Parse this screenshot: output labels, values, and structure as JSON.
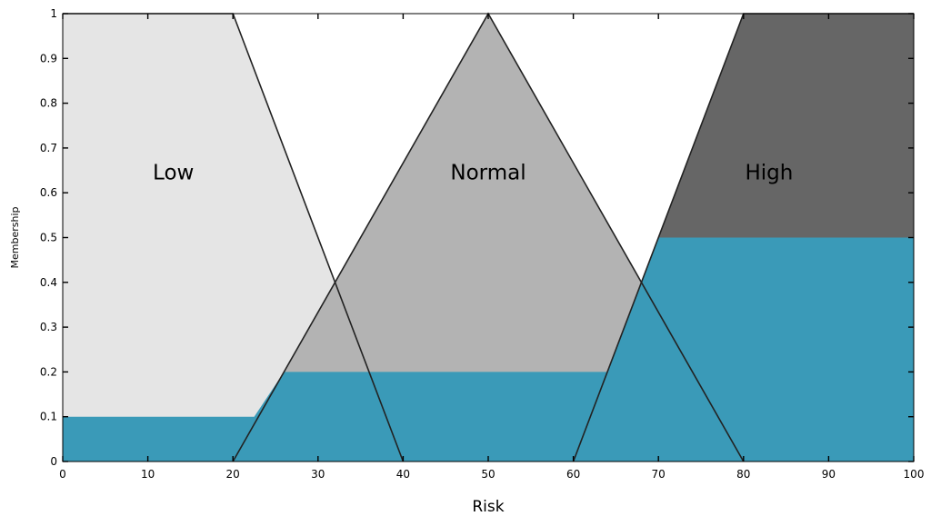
{
  "chart_data": {
    "type": "area",
    "xlabel": "Risk",
    "ylabel": "Membership",
    "xlim": [
      0,
      100
    ],
    "ylim": [
      0,
      1
    ],
    "xticks": [
      "0",
      "10",
      "20",
      "30",
      "40",
      "50",
      "60",
      "70",
      "80",
      "90",
      "100"
    ],
    "yticks": [
      "0",
      "0.1",
      "0.2",
      "0.3",
      "0.4",
      "0.5",
      "0.6",
      "0.7",
      "0.8",
      "0.9",
      "1"
    ],
    "grid": false,
    "colors": {
      "low": "#e5e5e5",
      "normal": "#b3b3b3",
      "high": "#666666",
      "aggregated": "#3a9ab8"
    },
    "series": [
      {
        "name": "Low",
        "key": "low",
        "label_pos": [
          13,
          0.63
        ],
        "points": [
          [
            0,
            1
          ],
          [
            20,
            1
          ],
          [
            40,
            0
          ]
        ]
      },
      {
        "name": "Normal",
        "key": "normal",
        "label_pos": [
          50,
          0.63
        ],
        "points": [
          [
            20,
            0
          ],
          [
            50,
            1
          ],
          [
            80,
            0
          ]
        ]
      },
      {
        "name": "High",
        "key": "high",
        "label_pos": [
          83,
          0.63
        ],
        "points": [
          [
            60,
            0
          ],
          [
            80,
            1
          ],
          [
            100,
            1
          ]
        ]
      }
    ],
    "aggregated_output": {
      "clip_levels": {
        "low": 0.1,
        "normal": 0.2,
        "high": 0.5
      },
      "points": [
        [
          0,
          0.1
        ],
        [
          22.5,
          0.1
        ],
        [
          26,
          0.2
        ],
        [
          64,
          0.2
        ],
        [
          70,
          0.5
        ],
        [
          100,
          0.5
        ]
      ]
    }
  }
}
